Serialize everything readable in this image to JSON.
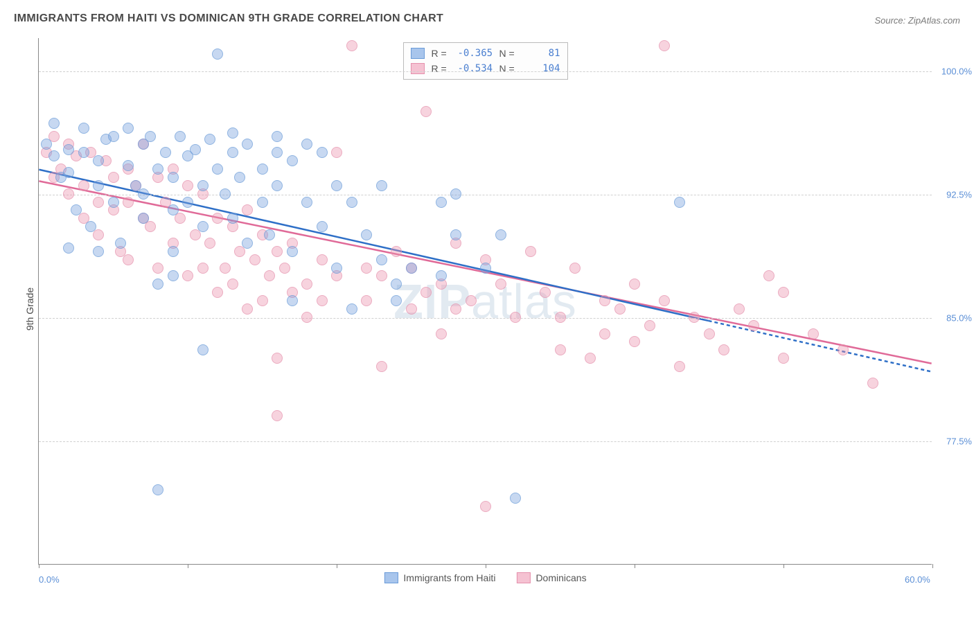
{
  "title": "IMMIGRANTS FROM HAITI VS DOMINICAN 9TH GRADE CORRELATION CHART",
  "source": "Source: ZipAtlas.com",
  "watermark_prefix": "ZIP",
  "watermark_suffix": "atlas",
  "ylabel": "9th Grade",
  "chart": {
    "type": "scatter-with-regression",
    "xlim": [
      0,
      60
    ],
    "ylim": [
      70,
      102
    ],
    "x_ticks": [
      0,
      10,
      20,
      30,
      40,
      50,
      60
    ],
    "x_tick_labels": {
      "0": "0.0%",
      "60": "60.0%"
    },
    "y_gridlines": [
      77.5,
      85.0,
      92.5,
      100.0
    ],
    "y_tick_labels": [
      "77.5%",
      "85.0%",
      "92.5%",
      "100.0%"
    ],
    "grid_color": "#d0d0d0",
    "axis_color": "#888888",
    "background_color": "#ffffff",
    "marker_radius": 8,
    "marker_opacity": 0.75,
    "line_width": 2.5,
    "label_fontsize": 14,
    "tick_fontsize": 13,
    "tick_color": "#5b8fd6"
  },
  "series": {
    "haiti": {
      "label": "Immigrants from Haiti",
      "color_fill": "rgba(120,160,220,0.55)",
      "color_stroke": "#6a9bd8",
      "swatch_fill": "#a8c5ec",
      "swatch_border": "#6a9bd8",
      "line_color": "#2e6fc7",
      "R": "-0.365",
      "N": "81",
      "regression": {
        "x1": 0,
        "y1": 94.0,
        "x2": 45,
        "y2": 84.8,
        "ext_x": 60,
        "ext_y": 81.7
      },
      "points": [
        [
          0.5,
          95.5
        ],
        [
          1,
          94.8
        ],
        [
          1,
          96.8
        ],
        [
          1.5,
          93.5
        ],
        [
          2,
          95.2
        ],
        [
          2,
          93.8
        ],
        [
          2.5,
          91.5
        ],
        [
          2,
          89.2
        ],
        [
          3,
          95.0
        ],
        [
          3,
          96.5
        ],
        [
          3.5,
          90.5
        ],
        [
          4,
          94.5
        ],
        [
          4,
          93.0
        ],
        [
          4.5,
          95.8
        ],
        [
          4,
          89.0
        ],
        [
          5,
          92.0
        ],
        [
          5,
          96.0
        ],
        [
          5.5,
          89.5
        ],
        [
          6,
          94.2
        ],
        [
          6,
          96.5
        ],
        [
          6.5,
          93.0
        ],
        [
          7,
          95.5
        ],
        [
          7,
          92.5
        ],
        [
          7,
          91.0
        ],
        [
          7.5,
          96.0
        ],
        [
          8,
          94.0
        ],
        [
          8,
          87.0
        ],
        [
          8.5,
          95.0
        ],
        [
          9,
          93.5
        ],
        [
          9,
          91.5
        ],
        [
          9,
          89.0
        ],
        [
          9.5,
          96.0
        ],
        [
          10,
          94.8
        ],
        [
          10,
          92.0
        ],
        [
          10.5,
          95.2
        ],
        [
          11,
          93.0
        ],
        [
          11,
          90.5
        ],
        [
          11.5,
          95.8
        ],
        [
          12,
          94.0
        ],
        [
          12,
          101.0
        ],
        [
          12.5,
          92.5
        ],
        [
          11,
          83.0
        ],
        [
          13,
          95.0
        ],
        [
          13,
          91.0
        ],
        [
          13.5,
          93.5
        ],
        [
          14,
          95.5
        ],
        [
          14,
          89.5
        ],
        [
          15,
          94.0
        ],
        [
          15,
          92.0
        ],
        [
          15.5,
          90.0
        ],
        [
          16,
          95.0
        ],
        [
          16,
          93.0
        ],
        [
          17,
          94.5
        ],
        [
          17,
          89.0
        ],
        [
          17,
          86.0
        ],
        [
          18,
          95.5
        ],
        [
          18,
          92.0
        ],
        [
          19,
          95.0
        ],
        [
          19,
          90.5
        ],
        [
          20,
          93.0
        ],
        [
          20,
          88.0
        ],
        [
          21,
          92.0
        ],
        [
          21,
          85.5
        ],
        [
          22,
          90.0
        ],
        [
          23,
          88.5
        ],
        [
          23,
          93.0
        ],
        [
          24,
          87.0
        ],
        [
          24,
          86.0
        ],
        [
          25,
          88.0
        ],
        [
          27,
          92.0
        ],
        [
          27,
          87.5
        ],
        [
          28,
          90.0
        ],
        [
          28,
          92.5
        ],
        [
          30,
          88.0
        ],
        [
          31,
          90.0
        ],
        [
          32,
          74.0
        ],
        [
          8,
          74.5
        ],
        [
          43,
          92.0
        ],
        [
          16,
          96.0
        ],
        [
          13,
          96.2
        ],
        [
          9,
          87.5
        ]
      ]
    },
    "dominican": {
      "label": "Dominicans",
      "color_fill": "rgba(235,150,175,0.55)",
      "color_stroke": "#e590ac",
      "swatch_fill": "#f5c2d2",
      "swatch_border": "#e590ac",
      "line_color": "#e06a98",
      "R": "-0.534",
      "N": "104",
      "regression": {
        "x1": 0,
        "y1": 93.3,
        "x2": 60,
        "y2": 82.2,
        "ext_x": 60,
        "ext_y": 82.2
      },
      "points": [
        [
          0.5,
          95.0
        ],
        [
          1,
          93.5
        ],
        [
          1,
          96.0
        ],
        [
          1.5,
          94.0
        ],
        [
          2,
          92.5
        ],
        [
          2,
          95.5
        ],
        [
          2.5,
          94.8
        ],
        [
          3,
          93.0
        ],
        [
          3,
          91.0
        ],
        [
          3.5,
          95.0
        ],
        [
          4,
          92.0
        ],
        [
          4,
          90.0
        ],
        [
          4.5,
          94.5
        ],
        [
          5,
          93.5
        ],
        [
          5,
          91.5
        ],
        [
          5.5,
          89.0
        ],
        [
          6,
          94.0
        ],
        [
          6,
          92.0
        ],
        [
          6,
          88.5
        ],
        [
          6.5,
          93.0
        ],
        [
          7,
          91.0
        ],
        [
          7,
          95.5
        ],
        [
          7.5,
          90.5
        ],
        [
          8,
          93.5
        ],
        [
          8,
          88.0
        ],
        [
          8.5,
          92.0
        ],
        [
          9,
          94.0
        ],
        [
          9,
          89.5
        ],
        [
          9.5,
          91.0
        ],
        [
          10,
          93.0
        ],
        [
          10,
          87.5
        ],
        [
          10.5,
          90.0
        ],
        [
          11,
          92.5
        ],
        [
          11,
          88.0
        ],
        [
          11.5,
          89.5
        ],
        [
          12,
          91.0
        ],
        [
          12,
          86.5
        ],
        [
          12.5,
          88.0
        ],
        [
          13,
          90.5
        ],
        [
          13,
          87.0
        ],
        [
          13.5,
          89.0
        ],
        [
          14,
          91.5
        ],
        [
          14,
          85.5
        ],
        [
          14.5,
          88.5
        ],
        [
          15,
          90.0
        ],
        [
          15,
          86.0
        ],
        [
          15.5,
          87.5
        ],
        [
          16,
          89.0
        ],
        [
          16,
          82.5
        ],
        [
          16.5,
          88.0
        ],
        [
          17,
          86.5
        ],
        [
          17,
          89.5
        ],
        [
          18,
          87.0
        ],
        [
          18,
          85.0
        ],
        [
          19,
          88.5
        ],
        [
          19,
          86.0
        ],
        [
          20,
          87.5
        ],
        [
          20,
          95.0
        ],
        [
          21,
          101.5
        ],
        [
          22,
          88.0
        ],
        [
          22,
          86.0
        ],
        [
          23,
          82.0
        ],
        [
          23,
          87.5
        ],
        [
          24,
          89.0
        ],
        [
          25,
          85.5
        ],
        [
          25,
          88.0
        ],
        [
          26,
          86.5
        ],
        [
          26,
          97.5
        ],
        [
          27,
          87.0
        ],
        [
          27,
          84.0
        ],
        [
          28,
          89.5
        ],
        [
          28,
          85.5
        ],
        [
          29,
          86.0
        ],
        [
          30,
          88.5
        ],
        [
          30,
          73.5
        ],
        [
          31,
          87.0
        ],
        [
          32,
          85.0
        ],
        [
          33,
          89.0
        ],
        [
          34,
          86.5
        ],
        [
          35,
          85.0
        ],
        [
          35,
          83.0
        ],
        [
          36,
          88.0
        ],
        [
          37,
          82.5
        ],
        [
          38,
          86.0
        ],
        [
          38,
          84.0
        ],
        [
          39,
          85.5
        ],
        [
          40,
          87.0
        ],
        [
          40,
          83.5
        ],
        [
          41,
          84.5
        ],
        [
          42,
          86.0
        ],
        [
          43,
          82.0
        ],
        [
          44,
          85.0
        ],
        [
          45,
          84.0
        ],
        [
          46,
          83.0
        ],
        [
          47,
          85.5
        ],
        [
          48,
          84.5
        ],
        [
          49,
          87.5
        ],
        [
          50,
          86.5
        ],
        [
          50,
          82.5
        ],
        [
          52,
          84.0
        ],
        [
          54,
          83.0
        ],
        [
          56,
          81.0
        ],
        [
          42,
          101.5
        ],
        [
          16,
          79.0
        ]
      ]
    }
  },
  "legend_labels": {
    "R": "R =",
    "N": "N ="
  }
}
